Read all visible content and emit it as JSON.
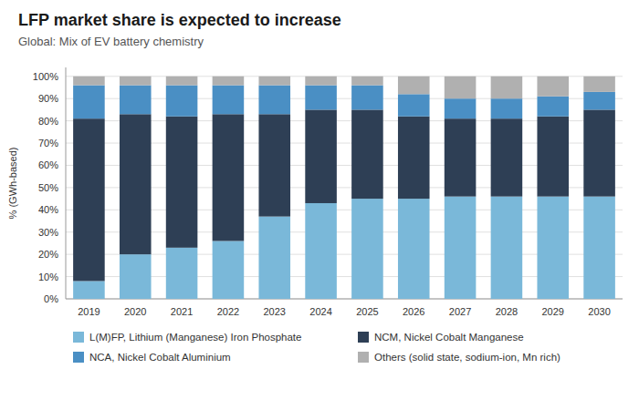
{
  "chart_data": {
    "type": "bar",
    "stacked": true,
    "title": "LFP market share is expected to increase",
    "subtitle": "Global: Mix of EV battery chemistry",
    "ylabel": "% (GWh-based)",
    "categories": [
      "2019",
      "2020",
      "2021",
      "2022",
      "2023",
      "2024",
      "2025",
      "2026",
      "2027",
      "2028",
      "2029",
      "2030"
    ],
    "series": [
      {
        "name": "L(M)FP, Lithium (Manganese) Iron Phosphate",
        "color": "#7ab8d9",
        "values": [
          8,
          20,
          23,
          26,
          37,
          43,
          45,
          45,
          46,
          46,
          46,
          46
        ]
      },
      {
        "name": "NCM, Nickel Cobalt Manganese",
        "color": "#2e3f55",
        "values": [
          73,
          63,
          59,
          57,
          46,
          42,
          40,
          37,
          35,
          35,
          36,
          39
        ]
      },
      {
        "name": "NCA, Nickel Cobalt Aluminium",
        "color": "#4a8fc4",
        "values": [
          15,
          13,
          14,
          13,
          13,
          11,
          11,
          10,
          9,
          9,
          9,
          8
        ]
      },
      {
        "name": "Others (solid state, sodium-ion, Mn rich)",
        "color": "#b0b0b0",
        "values": [
          4,
          4,
          4,
          4,
          4,
          4,
          4,
          8,
          10,
          10,
          9,
          7
        ]
      }
    ],
    "ylim": [
      0,
      104
    ],
    "yticks": [
      {
        "value": 0,
        "label": "0%"
      },
      {
        "value": 10,
        "label": "10%"
      },
      {
        "value": 20,
        "label": "20%"
      },
      {
        "value": 30,
        "label": "30%"
      },
      {
        "value": 40,
        "label": "40%"
      },
      {
        "value": 50,
        "label": "50%"
      },
      {
        "value": 60,
        "label": "60%"
      },
      {
        "value": 70,
        "label": "70%"
      },
      {
        "value": 80,
        "label": "80%"
      },
      {
        "value": 90,
        "label": "90%"
      },
      {
        "value": 100,
        "label": "100%"
      }
    ],
    "grid": true,
    "legend": "bottom"
  }
}
